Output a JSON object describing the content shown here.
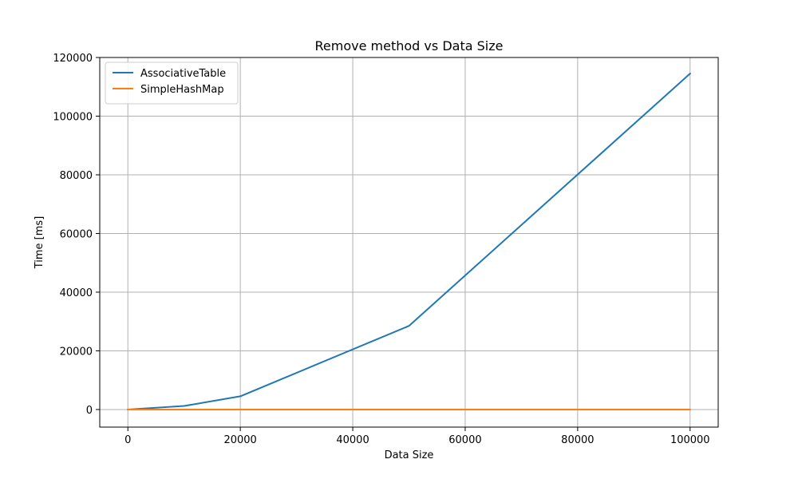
{
  "chart_data": {
    "type": "line",
    "title": "Remove method vs Data Size",
    "xlabel": "Data Size",
    "ylabel": "Time [ms]",
    "xlim": [
      -5000,
      105000
    ],
    "ylim": [
      -6000,
      120000
    ],
    "xticks": [
      0,
      20000,
      40000,
      60000,
      80000,
      100000
    ],
    "yticks": [
      0,
      20000,
      40000,
      60000,
      80000,
      100000,
      120000
    ],
    "grid": true,
    "legend_position": "top-left",
    "x": [
      0,
      10000,
      20000,
      50000,
      100000
    ],
    "series": [
      {
        "name": "AssociativeTable",
        "color": "#1f77b4",
        "values": [
          0,
          1200,
          4500,
          28500,
          114500
        ]
      },
      {
        "name": "SimpleHashMap",
        "color": "#ff7f0e",
        "values": [
          0,
          0,
          0,
          0,
          0
        ]
      }
    ]
  }
}
